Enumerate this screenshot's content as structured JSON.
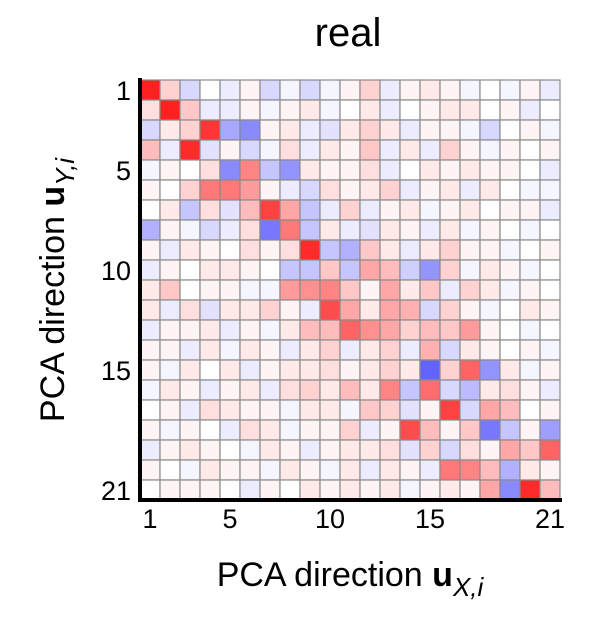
{
  "chart_data": {
    "type": "heatmap",
    "title": "real",
    "xlabel": {
      "prefix": "PCA direction ",
      "vec": "u",
      "sub": "X,",
      "idx": "i"
    },
    "ylabel": {
      "prefix": "PCA direction ",
      "vec": "u",
      "sub": "Y,",
      "idx": "i"
    },
    "n": 21,
    "x_ticks": [
      1,
      5,
      10,
      15,
      21
    ],
    "y_ticks": [
      1,
      5,
      10,
      15,
      21
    ],
    "colormap": {
      "negative": "#3c3cff",
      "zero": "#ffffff",
      "positive": "#ff2020"
    },
    "value_range": [
      -1,
      1
    ],
    "values": [
      [
        1.0,
        0.2,
        -0.2,
        0.0,
        -0.1,
        0.05,
        -0.2,
        -0.05,
        -0.2,
        -0.05,
        0.05,
        0.2,
        -0.1,
        0.05,
        0.1,
        0.05,
        -0.05,
        0.0,
        -0.05,
        0.05,
        -0.1
      ],
      [
        0.15,
        1.0,
        0.25,
        -0.1,
        -0.1,
        0.05,
        -0.05,
        0.05,
        0.1,
        -0.05,
        0.0,
        0.1,
        -0.1,
        0.0,
        0.05,
        0.1,
        0.1,
        0.0,
        0.05,
        -0.1,
        0.0
      ],
      [
        -0.2,
        0.1,
        0.2,
        0.9,
        -0.45,
        -0.6,
        0.05,
        0.1,
        -0.1,
        -0.15,
        0.1,
        0.2,
        0.1,
        -0.1,
        0.05,
        0.05,
        -0.05,
        -0.2,
        0.0,
        0.05,
        -0.05
      ],
      [
        0.3,
        -0.1,
        0.95,
        -0.15,
        0.05,
        -0.2,
        -0.05,
        0.15,
        -0.1,
        0.1,
        0.05,
        0.25,
        -0.1,
        0.1,
        -0.1,
        0.2,
        0.05,
        -0.05,
        0.05,
        0.0,
        0.05
      ],
      [
        -0.05,
        0.05,
        0.0,
        0.15,
        -0.6,
        0.55,
        -0.3,
        -0.55,
        0.1,
        0.05,
        0.05,
        0.15,
        -0.1,
        0.0,
        0.1,
        0.05,
        0.1,
        0.05,
        0.05,
        0.0,
        -0.1
      ],
      [
        0.05,
        0.0,
        0.2,
        0.6,
        0.6,
        0.45,
        0.05,
        -0.1,
        -0.2,
        0.15,
        0.05,
        0.1,
        0.2,
        -0.1,
        0.05,
        0.1,
        -0.1,
        0.1,
        0.0,
        -0.05,
        -0.05
      ],
      [
        0.0,
        0.1,
        -0.3,
        0.15,
        -0.15,
        0.3,
        0.85,
        0.4,
        -0.3,
        -0.1,
        0.2,
        -0.1,
        0.05,
        0.1,
        -0.05,
        0.05,
        0.1,
        0.0,
        0.05,
        0.05,
        -0.1
      ],
      [
        -0.4,
        0.05,
        -0.05,
        -0.2,
        -0.1,
        0.15,
        -0.7,
        0.6,
        -0.3,
        0.1,
        -0.1,
        -0.15,
        0.1,
        0.05,
        -0.1,
        0.1,
        -0.05,
        0.05,
        0.0,
        -0.05,
        0.0
      ],
      [
        0.05,
        -0.1,
        0.1,
        0.05,
        0.0,
        0.15,
        0.05,
        0.15,
        0.95,
        -0.3,
        -0.4,
        0.25,
        0.1,
        -0.1,
        0.1,
        0.2,
        0.05,
        0.05,
        -0.05,
        0.0,
        0.05
      ],
      [
        -0.1,
        0.05,
        0.0,
        0.1,
        0.1,
        0.05,
        0.0,
        -0.3,
        -0.3,
        0.25,
        -0.3,
        0.4,
        0.3,
        -0.25,
        -0.55,
        0.2,
        -0.05,
        0.1,
        0.05,
        -0.05,
        0.0
      ],
      [
        0.1,
        0.25,
        0.0,
        0.05,
        0.05,
        -0.05,
        -0.05,
        0.45,
        0.5,
        0.55,
        0.25,
        0.05,
        0.4,
        0.1,
        0.25,
        -0.1,
        0.2,
        0.1,
        -0.05,
        0.05,
        0.0
      ],
      [
        0.1,
        -0.1,
        0.15,
        -0.15,
        0.1,
        0.1,
        0.2,
        0.05,
        -0.1,
        0.8,
        0.4,
        0.1,
        0.4,
        0.35,
        -0.2,
        0.2,
        0.05,
        -0.05,
        0.0,
        0.1,
        0.05
      ],
      [
        -0.1,
        0.05,
        0.05,
        0.1,
        -0.1,
        0.05,
        -0.05,
        0.1,
        0.3,
        0.3,
        0.7,
        0.5,
        0.4,
        0.2,
        0.3,
        0.25,
        0.45,
        0.05,
        0.0,
        -0.05,
        0.0
      ],
      [
        0.05,
        0.05,
        -0.1,
        0.1,
        -0.05,
        0.1,
        0.05,
        -0.1,
        0.1,
        0.2,
        -0.1,
        0.1,
        0.2,
        -0.1,
        0.35,
        -0.2,
        0.1,
        0.05,
        0.0,
        0.05,
        -0.05
      ],
      [
        0.05,
        -0.05,
        0.1,
        0.0,
        0.1,
        -0.1,
        0.05,
        0.1,
        0.1,
        0.15,
        0.05,
        0.1,
        0.2,
        0.1,
        -0.8,
        0.2,
        0.7,
        -0.55,
        0.1,
        -0.05,
        0.05
      ],
      [
        -0.05,
        0.1,
        0.05,
        -0.1,
        0.05,
        0.1,
        -0.1,
        0.15,
        0.2,
        0.1,
        0.3,
        0.1,
        0.55,
        -0.3,
        0.65,
        -0.2,
        -0.35,
        0.1,
        0.15,
        0.05,
        -0.1
      ],
      [
        0.0,
        0.05,
        -0.1,
        0.15,
        0.1,
        0.05,
        0.05,
        -0.05,
        0.1,
        0.1,
        -0.05,
        0.25,
        0.2,
        -0.15,
        0.05,
        0.85,
        -0.2,
        0.4,
        0.3,
        0.0,
        0.05
      ],
      [
        0.05,
        -0.05,
        0.05,
        0.0,
        -0.1,
        0.15,
        0.1,
        -0.05,
        0.05,
        0.05,
        0.2,
        -0.1,
        0.05,
        0.8,
        0.3,
        0.05,
        0.25,
        -0.7,
        -0.3,
        0.05,
        -0.5
      ],
      [
        -0.1,
        0.05,
        0.1,
        0.05,
        0.0,
        -0.05,
        0.1,
        0.05,
        -0.1,
        0.05,
        0.1,
        0.1,
        0.15,
        -0.15,
        0.2,
        -0.2,
        0.15,
        0.05,
        0.4,
        0.25,
        0.7
      ],
      [
        0.05,
        0.0,
        -0.05,
        0.1,
        0.05,
        0.05,
        -0.05,
        0.1,
        0.05,
        -0.05,
        0.1,
        -0.1,
        0.1,
        0.05,
        -0.1,
        0.6,
        0.55,
        0.3,
        -0.4,
        0.1,
        0.05
      ],
      [
        0.0,
        0.05,
        0.05,
        0.05,
        0.0,
        -0.1,
        0.05,
        0.0,
        0.1,
        0.05,
        0.1,
        0.05,
        0.1,
        -0.05,
        0.05,
        0.1,
        0.05,
        0.4,
        -0.6,
        0.95,
        0.3
      ]
    ]
  }
}
